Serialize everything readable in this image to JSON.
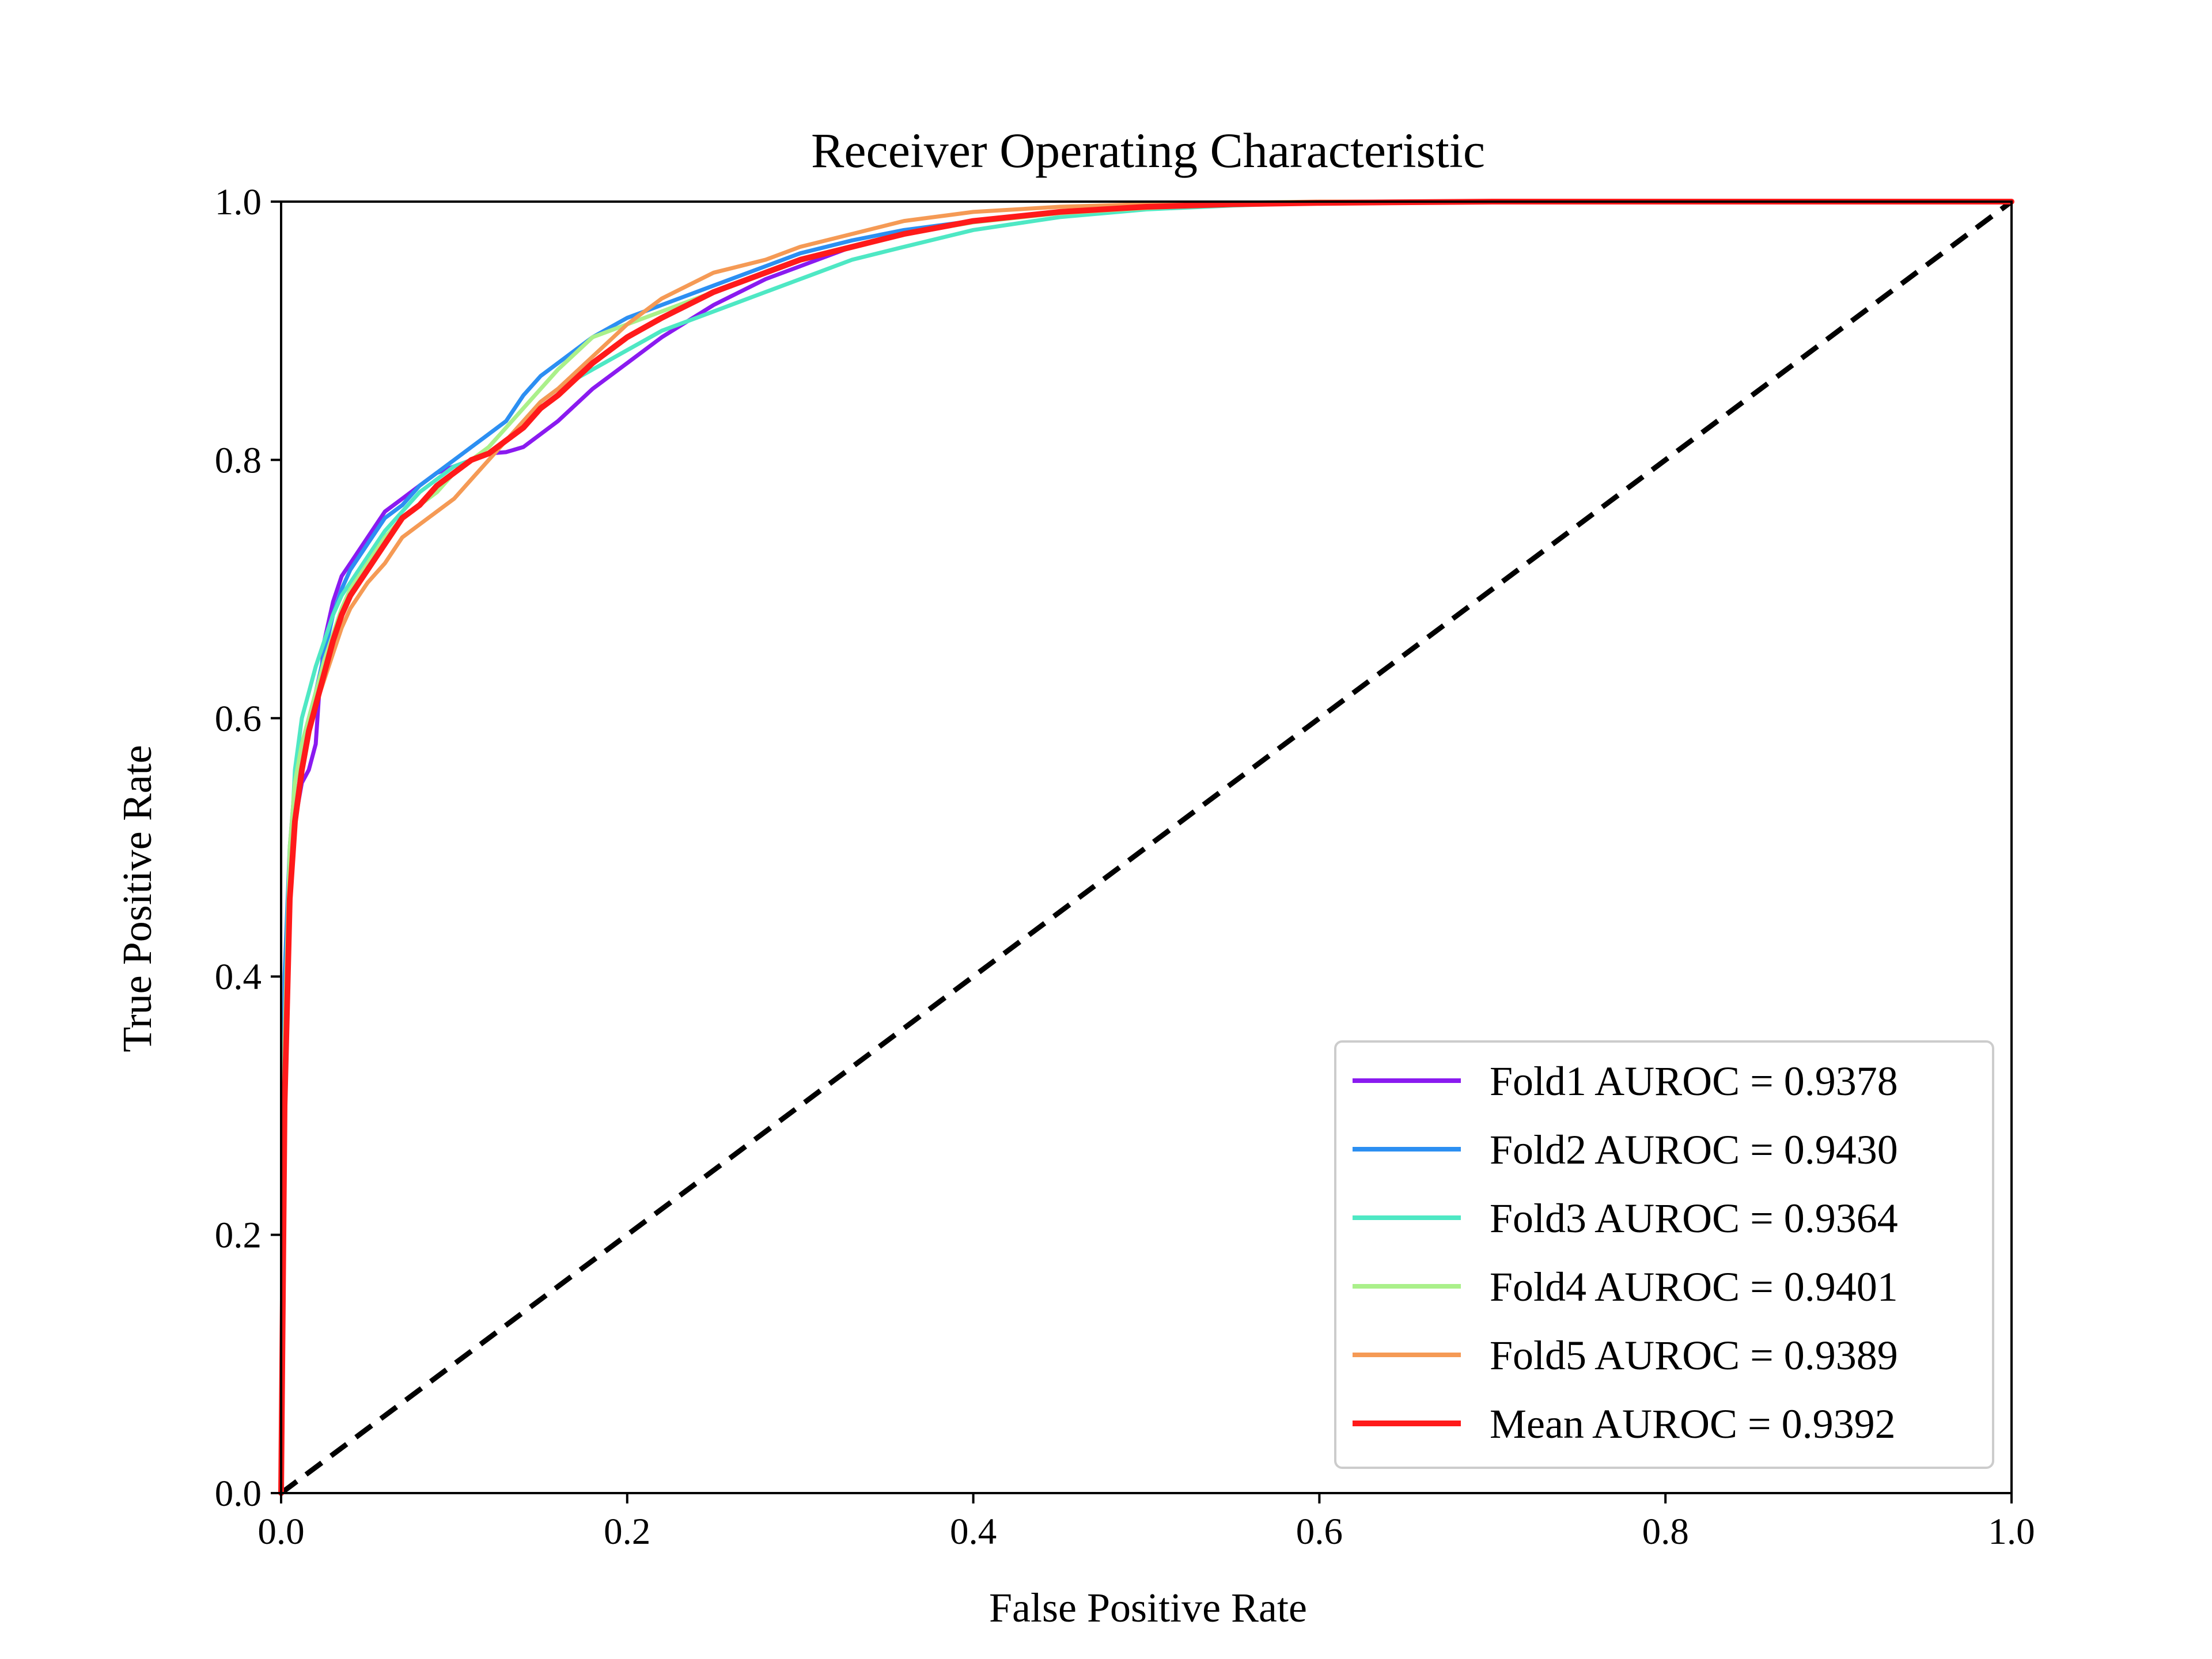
{
  "chart_data": {
    "type": "line",
    "title": "Receiver Operating Characteristic",
    "xlabel": "False Positive Rate",
    "ylabel": "True Positive Rate",
    "xlim": [
      0.0,
      1.0
    ],
    "ylim": [
      0.0,
      1.0
    ],
    "xticks": [
      "0.0",
      "0.2",
      "0.4",
      "0.6",
      "0.8",
      "1.0"
    ],
    "yticks": [
      "0.0",
      "0.2",
      "0.4",
      "0.6",
      "0.8",
      "1.0"
    ],
    "grid": false,
    "legend_position": "lower-right",
    "reference_line": {
      "style": "dashed",
      "color": "#000000",
      "x": [
        0.0,
        1.0
      ],
      "y": [
        0.0,
        1.0
      ]
    },
    "series": [
      {
        "name": "Fold1 AUROC = 0.9378",
        "color": "#8a1af0",
        "x": [
          0,
          0.002,
          0.005,
          0.008,
          0.012,
          0.016,
          0.02,
          0.022,
          0.025,
          0.03,
          0.035,
          0.04,
          0.05,
          0.06,
          0.07,
          0.08,
          0.09,
          0.1,
          0.11,
          0.12,
          0.13,
          0.14,
          0.15,
          0.16,
          0.18,
          0.2,
          0.22,
          0.25,
          0.28,
          0.3,
          0.33,
          0.36,
          0.4,
          0.45,
          0.5,
          0.55,
          0.6,
          0.7,
          0.8,
          0.9,
          1.0
        ],
        "y": [
          0,
          0.33,
          0.46,
          0.52,
          0.55,
          0.56,
          0.58,
          0.62,
          0.66,
          0.69,
          0.71,
          0.72,
          0.74,
          0.76,
          0.77,
          0.78,
          0.79,
          0.795,
          0.8,
          0.805,
          0.806,
          0.81,
          0.82,
          0.83,
          0.855,
          0.875,
          0.895,
          0.92,
          0.94,
          0.95,
          0.965,
          0.975,
          0.985,
          0.992,
          0.996,
          0.998,
          0.999,
          1.0,
          1.0,
          1.0,
          1.0
        ]
      },
      {
        "name": "Fold2 AUROC = 0.9430",
        "color": "#2c8ff2",
        "x": [
          0,
          0.002,
          0.005,
          0.008,
          0.012,
          0.016,
          0.02,
          0.025,
          0.03,
          0.035,
          0.04,
          0.05,
          0.06,
          0.07,
          0.08,
          0.09,
          0.1,
          0.11,
          0.12,
          0.13,
          0.14,
          0.15,
          0.16,
          0.18,
          0.2,
          0.22,
          0.25,
          0.28,
          0.3,
          0.33,
          0.36,
          0.4,
          0.45,
          0.5,
          0.55,
          0.6,
          0.7,
          0.8,
          0.9,
          1.0
        ],
        "y": [
          0,
          0.4,
          0.5,
          0.55,
          0.58,
          0.6,
          0.62,
          0.65,
          0.68,
          0.7,
          0.715,
          0.735,
          0.755,
          0.765,
          0.78,
          0.79,
          0.8,
          0.81,
          0.82,
          0.83,
          0.85,
          0.865,
          0.875,
          0.895,
          0.91,
          0.92,
          0.935,
          0.95,
          0.96,
          0.97,
          0.978,
          0.985,
          0.992,
          0.996,
          0.998,
          0.999,
          1.0,
          1.0,
          1.0,
          1.0
        ]
      },
      {
        "name": "Fold3 AUROC = 0.9364",
        "color": "#4ee8c4",
        "x": [
          0,
          0.002,
          0.005,
          0.008,
          0.012,
          0.016,
          0.02,
          0.025,
          0.03,
          0.035,
          0.04,
          0.05,
          0.06,
          0.07,
          0.08,
          0.09,
          0.1,
          0.11,
          0.12,
          0.13,
          0.14,
          0.15,
          0.16,
          0.18,
          0.2,
          0.22,
          0.25,
          0.28,
          0.3,
          0.33,
          0.36,
          0.4,
          0.45,
          0.5,
          0.55,
          0.6,
          0.7,
          0.8,
          0.9,
          1.0
        ],
        "y": [
          0,
          0.3,
          0.48,
          0.56,
          0.6,
          0.62,
          0.64,
          0.66,
          0.68,
          0.695,
          0.705,
          0.725,
          0.745,
          0.76,
          0.775,
          0.785,
          0.795,
          0.8,
          0.805,
          0.815,
          0.83,
          0.845,
          0.855,
          0.87,
          0.885,
          0.9,
          0.915,
          0.93,
          0.94,
          0.955,
          0.965,
          0.978,
          0.988,
          0.994,
          0.997,
          0.999,
          1.0,
          1.0,
          1.0,
          1.0
        ]
      },
      {
        "name": "Fold4 AUROC = 0.9401",
        "color": "#aaf08a",
        "x": [
          0,
          0.002,
          0.005,
          0.008,
          0.012,
          0.016,
          0.02,
          0.025,
          0.03,
          0.035,
          0.04,
          0.05,
          0.06,
          0.07,
          0.08,
          0.09,
          0.1,
          0.11,
          0.12,
          0.13,
          0.14,
          0.15,
          0.16,
          0.18,
          0.2,
          0.22,
          0.25,
          0.28,
          0.3,
          0.33,
          0.36,
          0.4,
          0.45,
          0.5,
          0.55,
          0.6,
          0.7,
          0.8,
          0.9,
          1.0
        ],
        "y": [
          0,
          0.35,
          0.5,
          0.55,
          0.58,
          0.6,
          0.62,
          0.645,
          0.665,
          0.685,
          0.7,
          0.72,
          0.74,
          0.755,
          0.765,
          0.775,
          0.79,
          0.8,
          0.81,
          0.825,
          0.84,
          0.855,
          0.87,
          0.895,
          0.905,
          0.915,
          0.93,
          0.945,
          0.955,
          0.965,
          0.975,
          0.984,
          0.991,
          0.995,
          0.998,
          0.999,
          1.0,
          1.0,
          1.0,
          1.0
        ]
      },
      {
        "name": "Fold5 AUROC = 0.9389",
        "color": "#f59a55",
        "x": [
          0,
          0.002,
          0.005,
          0.008,
          0.012,
          0.016,
          0.02,
          0.025,
          0.03,
          0.035,
          0.04,
          0.05,
          0.06,
          0.07,
          0.08,
          0.09,
          0.1,
          0.11,
          0.12,
          0.13,
          0.14,
          0.15,
          0.16,
          0.18,
          0.2,
          0.22,
          0.25,
          0.28,
          0.3,
          0.33,
          0.36,
          0.4,
          0.45,
          0.5,
          0.55,
          0.6,
          0.7,
          0.8,
          0.9,
          1.0
        ],
        "y": [
          0,
          0.3,
          0.45,
          0.52,
          0.56,
          0.59,
          0.61,
          0.63,
          0.65,
          0.67,
          0.685,
          0.705,
          0.72,
          0.74,
          0.75,
          0.76,
          0.77,
          0.785,
          0.8,
          0.815,
          0.83,
          0.845,
          0.855,
          0.88,
          0.905,
          0.925,
          0.945,
          0.955,
          0.965,
          0.975,
          0.985,
          0.992,
          0.996,
          0.998,
          0.999,
          1.0,
          1.0,
          1.0,
          1.0,
          1.0
        ]
      },
      {
        "name": "Mean AUROC = 0.9392",
        "color": "#ff1a1a",
        "x": [
          0,
          0.002,
          0.005,
          0.008,
          0.012,
          0.016,
          0.02,
          0.025,
          0.03,
          0.035,
          0.04,
          0.05,
          0.06,
          0.07,
          0.08,
          0.09,
          0.1,
          0.11,
          0.12,
          0.13,
          0.14,
          0.15,
          0.16,
          0.18,
          0.2,
          0.22,
          0.25,
          0.28,
          0.3,
          0.33,
          0.36,
          0.4,
          0.45,
          0.5,
          0.55,
          0.6,
          0.7,
          0.8,
          0.9,
          1.0
        ],
        "y": [
          0,
          0.3,
          0.46,
          0.52,
          0.56,
          0.59,
          0.61,
          0.635,
          0.66,
          0.68,
          0.695,
          0.715,
          0.735,
          0.755,
          0.765,
          0.78,
          0.79,
          0.8,
          0.805,
          0.815,
          0.825,
          0.84,
          0.85,
          0.875,
          0.895,
          0.91,
          0.93,
          0.945,
          0.955,
          0.965,
          0.975,
          0.985,
          0.992,
          0.996,
          0.998,
          0.999,
          1.0,
          1.0,
          1.0,
          1.0
        ]
      }
    ]
  }
}
